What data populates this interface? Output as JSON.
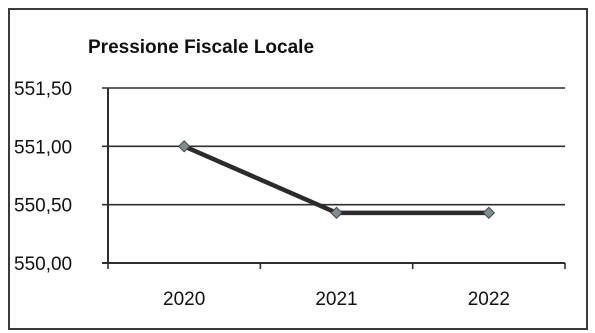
{
  "chart_data": {
    "type": "line",
    "title": "Pressione Fiscale Locale",
    "categories": [
      "2020",
      "2021",
      "2022"
    ],
    "series": [
      {
        "values": [
          551.0,
          550.43,
          550.43
        ]
      }
    ],
    "yticks": [
      "550,00",
      "550,50",
      "551,00",
      "551,50"
    ],
    "ylim": [
      550.0,
      551.5
    ],
    "grid": true,
    "legend": "none",
    "xlabel": "",
    "ylabel": ""
  },
  "colors": {
    "line": "#2b2b2b",
    "marker": "#7f8f8f",
    "grid": "#2f2f2f"
  }
}
